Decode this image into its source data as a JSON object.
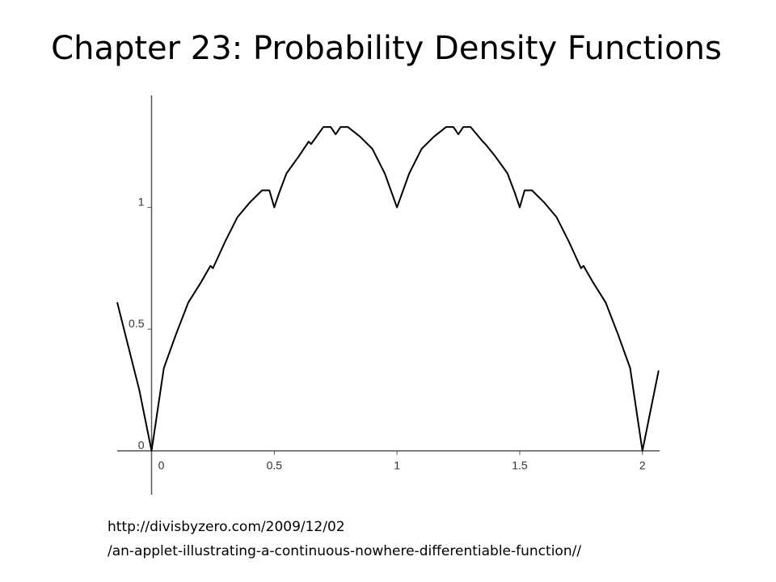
{
  "chart_data": {
    "type": "line",
    "title": "Chapter 23: Probability Density Functions",
    "x": [
      -0.14,
      -0.1,
      -0.05,
      0,
      0.05,
      0.1,
      0.15,
      0.2,
      0.24,
      0.25,
      0.3,
      0.35,
      0.4,
      0.45,
      0.48,
      0.5,
      0.52,
      0.55,
      0.6,
      0.64,
      0.65,
      0.7,
      0.73,
      0.75,
      0.77,
      0.8,
      0.85,
      0.9,
      0.95,
      1,
      1.05,
      1.1,
      1.15,
      1.2,
      1.23,
      1.25,
      1.27,
      1.3,
      1.35,
      1.36,
      1.4,
      1.45,
      1.48,
      1.5,
      1.52,
      1.55,
      1.6,
      1.65,
      1.7,
      1.75,
      1.76,
      1.8,
      1.85,
      1.9,
      1.95,
      2,
      2.05,
      2.066
    ],
    "series": [
      {
        "color": "#000000",
        "values": [
          0.61,
          0.45,
          0.25,
          0,
          0.34,
          0.48,
          0.61,
          0.69,
          0.76,
          0.75,
          0.86,
          0.96,
          1.02,
          1.07,
          1.07,
          1.0,
          1.06,
          1.14,
          1.21,
          1.27,
          1.26,
          1.33,
          1.33,
          1.3,
          1.33,
          1.33,
          1.29,
          1.24,
          1.14,
          1.0,
          1.14,
          1.24,
          1.29,
          1.33,
          1.33,
          1.3,
          1.33,
          1.33,
          1.27,
          1.26,
          1.21,
          1.14,
          1.06,
          1.0,
          1.07,
          1.07,
          1.02,
          0.96,
          0.86,
          0.75,
          0.76,
          0.69,
          0.61,
          0.48,
          0.34,
          0,
          0.25,
          0.33
        ]
      }
    ],
    "xlim": [
      -0.14,
      2.07
    ],
    "ylim": [
      -0.18,
      1.46
    ],
    "xticks": [
      0,
      0.5,
      1,
      1.5,
      2
    ],
    "yticks": [
      0,
      0.5,
      1
    ],
    "grid": false
  },
  "footer": {
    "lines": [
      "http://divisbyzero.com/2009/12/02",
      "/an-applet-illustrating-a-continuous-nowhere-differentiable-function//"
    ]
  }
}
